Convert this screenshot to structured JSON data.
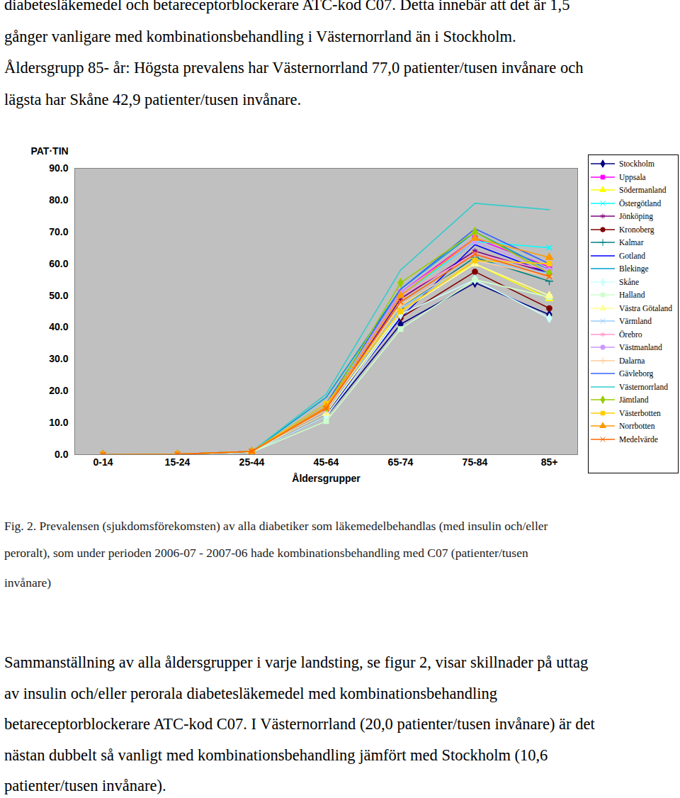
{
  "top_text": [
    "diabetesläkemedel och betareceptorblockerare ATC-kod C07. Detta innebär att det är 1,5",
    "gånger vanligare med kombinationsbehandling i Västernorrland än i Stockholm.",
    "Åldersgrupp 85- år: Högsta prevalens har Västernorrland 77,0 patienter/tusen invånare och",
    "lägsta har Skåne 42,9  patienter/tusen invånare."
  ],
  "chart_data": {
    "type": "line",
    "y_label": "PAT·TIN",
    "x_label": "Åldersgrupper",
    "categories": [
      "0-14",
      "15-24",
      "25-44",
      "45-64",
      "65-74",
      "75-84",
      "85+"
    ],
    "ylim": [
      0,
      90
    ],
    "yticks": [
      {
        "value": 0,
        "label": "0.0"
      },
      {
        "value": 10,
        "label": "10.0"
      },
      {
        "value": 20,
        "label": "20.0"
      },
      {
        "value": 30,
        "label": "30.0"
      },
      {
        "value": 40,
        "label": "40.0"
      },
      {
        "value": 50,
        "label": "50.0"
      },
      {
        "value": 60,
        "label": "60.0"
      },
      {
        "value": 70,
        "label": "70.0"
      },
      {
        "value": 80,
        "label": "80.0"
      },
      {
        "value": 90,
        "label": "90.0"
      }
    ],
    "grid": false,
    "legend": "right",
    "series": [
      {
        "name": "Stockholm",
        "color": "#000080",
        "marker": "diamond",
        "values": [
          0,
          0,
          0.8,
          12,
          41,
          54,
          44
        ]
      },
      {
        "name": "Uppsala",
        "color": "#ff00ff",
        "marker": "square",
        "values": [
          0,
          0.1,
          1,
          15,
          51,
          68,
          59
        ]
      },
      {
        "name": "Södermanland",
        "color": "#ffff00",
        "marker": "triangle",
        "values": [
          0,
          0.1,
          1,
          14,
          47,
          60,
          49
        ]
      },
      {
        "name": "Östergötland",
        "color": "#00ffff",
        "marker": "times",
        "values": [
          0,
          0.1,
          1,
          16,
          50,
          67,
          65
        ]
      },
      {
        "name": "Jönköping",
        "color": "#800080",
        "marker": "asterisk",
        "values": [
          0,
          0.1,
          1,
          14,
          49,
          64,
          57
        ]
      },
      {
        "name": "Kronoberg",
        "color": "#800000",
        "marker": "circle",
        "values": [
          0,
          0.1,
          1,
          13,
          43,
          57.5,
          46
        ]
      },
      {
        "name": "Kalmar",
        "color": "#008080",
        "marker": "plus",
        "values": [
          0,
          0.1,
          1,
          14,
          46,
          62,
          54.5
        ]
      },
      {
        "name": "Gotland",
        "color": "#0000ff",
        "marker": "none",
        "values": [
          0,
          0.1,
          1,
          13,
          43,
          66,
          57
        ]
      },
      {
        "name": "Blekinge",
        "color": "#00a0d0",
        "marker": "none",
        "values": [
          0,
          0.1,
          1,
          18,
          52,
          70,
          58
        ]
      },
      {
        "name": "Skåne",
        "color": "#ccffff",
        "marker": "diamond",
        "values": [
          0,
          0,
          0.8,
          12,
          44,
          55,
          42.9
        ]
      },
      {
        "name": "Halland",
        "color": "#ccffcc",
        "marker": "square",
        "values": [
          0,
          0,
          0.8,
          10.5,
          39.5,
          55,
          49.5
        ]
      },
      {
        "name": "Västra Götaland",
        "color": "#ffff99",
        "marker": "triangle",
        "values": [
          0,
          0.1,
          1,
          13,
          45,
          60,
          50
        ]
      },
      {
        "name": "Värmland",
        "color": "#99ccff",
        "marker": "times",
        "values": [
          0,
          0.1,
          1,
          14,
          46,
          61,
          57
        ]
      },
      {
        "name": "Örebro",
        "color": "#ff99cc",
        "marker": "asterisk",
        "values": [
          0,
          0.1,
          1,
          15,
          50,
          63,
          58
        ]
      },
      {
        "name": "Västmanland",
        "color": "#cc99ff",
        "marker": "circle",
        "values": [
          0,
          0.1,
          1,
          15,
          51,
          67,
          58
        ]
      },
      {
        "name": "Dalarna",
        "color": "#ffcc99",
        "marker": "plus",
        "values": [
          0,
          0.1,
          1,
          14,
          47,
          61,
          56
        ]
      },
      {
        "name": "Gävleborg",
        "color": "#3366ff",
        "marker": "none",
        "values": [
          0,
          0.1,
          1,
          16,
          52,
          71,
          60
        ]
      },
      {
        "name": "Västernorrland",
        "color": "#33cccc",
        "marker": "none",
        "values": [
          0,
          0.1,
          1,
          19,
          58,
          79,
          77
        ]
      },
      {
        "name": "Jämtland",
        "color": "#99cc00",
        "marker": "diamond",
        "values": [
          0,
          0.1,
          1,
          15,
          54,
          70,
          57
        ]
      },
      {
        "name": "Västerbotten",
        "color": "#ffcc00",
        "marker": "square",
        "values": [
          0,
          0.1,
          1,
          16,
          45,
          61,
          60
        ]
      },
      {
        "name": "Norrbotten",
        "color": "#ff9900",
        "marker": "triangle",
        "values": [
          0,
          0.1,
          1,
          15,
          50,
          68,
          62
        ]
      },
      {
        "name": "Medelvärde",
        "color": "#ff6600",
        "marker": "times",
        "values": [
          0,
          0.1,
          1,
          14.5,
          48,
          63,
          56
        ]
      }
    ]
  },
  "caption": [
    "Fig. 2. Prevalensen (sjukdomsförekomsten) av alla diabetiker som läkemedelbehandlas (med insulin och/eller",
    "peroralt), som under perioden 2006-07 - 2007-06 hade kombinationsbehandling med C07 (patienter/tusen",
    "invånare)"
  ],
  "body_text": [
    "Sammanställning av alla åldersgrupper i varje landsting, se figur 2, visar skillnader på uttag",
    "av insulin och/eller perorala diabetesläkemedel med kombinationsbehandling",
    "betareceptorblockerare ATC-kod C07. I Västernorrland (20,0 patienter/tusen invånare) är det",
    "nästan dubbelt så vanligt med kombinationsbehandling jämfört med Stockholm (10,6",
    "patienter/tusen invånare)."
  ]
}
